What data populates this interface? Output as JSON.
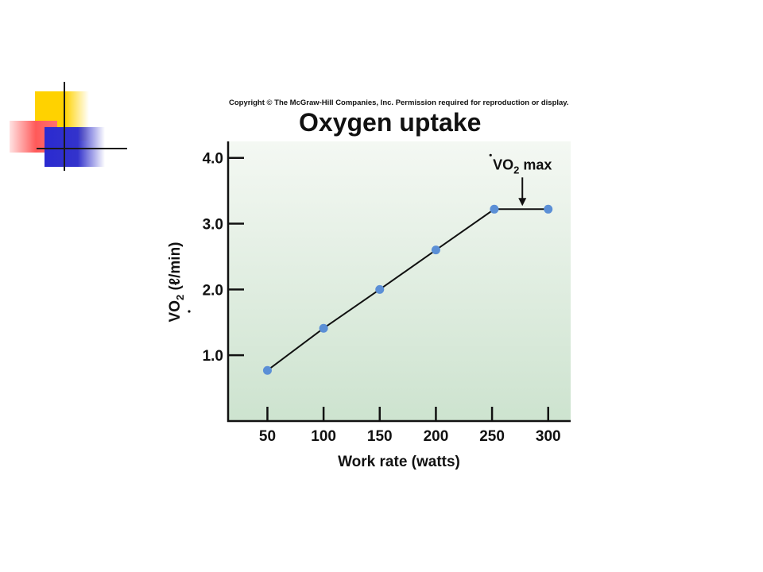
{
  "copyright": "Copyright © The McGraw-Hill Companies, Inc. Permission required for reproduction or display.",
  "chart_data": {
    "type": "line",
    "title": "Oxygen uptake",
    "xlabel": "Work rate (watts)",
    "ylabel": "VO2 (ℓ/min)",
    "ylabel_parts": {
      "v": "V",
      "o": "O",
      "sub": "2",
      "rest": " (ℓ/min)"
    },
    "x_ticks": [
      50,
      100,
      150,
      200,
      250,
      300
    ],
    "y_ticks": [
      "1.0",
      "2.0",
      "3.0",
      "4.0"
    ],
    "xlim": [
      15,
      320
    ],
    "ylim": [
      0,
      4.25
    ],
    "points": [
      {
        "x": 50,
        "y": 0.77
      },
      {
        "x": 100,
        "y": 1.41
      },
      {
        "x": 150,
        "y": 2.0
      },
      {
        "x": 200,
        "y": 2.6
      },
      {
        "x": 252,
        "y": 3.22
      },
      {
        "x": 300,
        "y": 3.22
      }
    ],
    "annotation": {
      "text_v": "V",
      "text_o": "O",
      "text_sub": "2",
      "text_rest": " max",
      "x": 277,
      "y": 3.22
    },
    "colors": {
      "point": "#5b8fd6",
      "line": "#111111",
      "bg_top": "#f4f8f3",
      "bg_bottom": "#cde3cf"
    }
  }
}
